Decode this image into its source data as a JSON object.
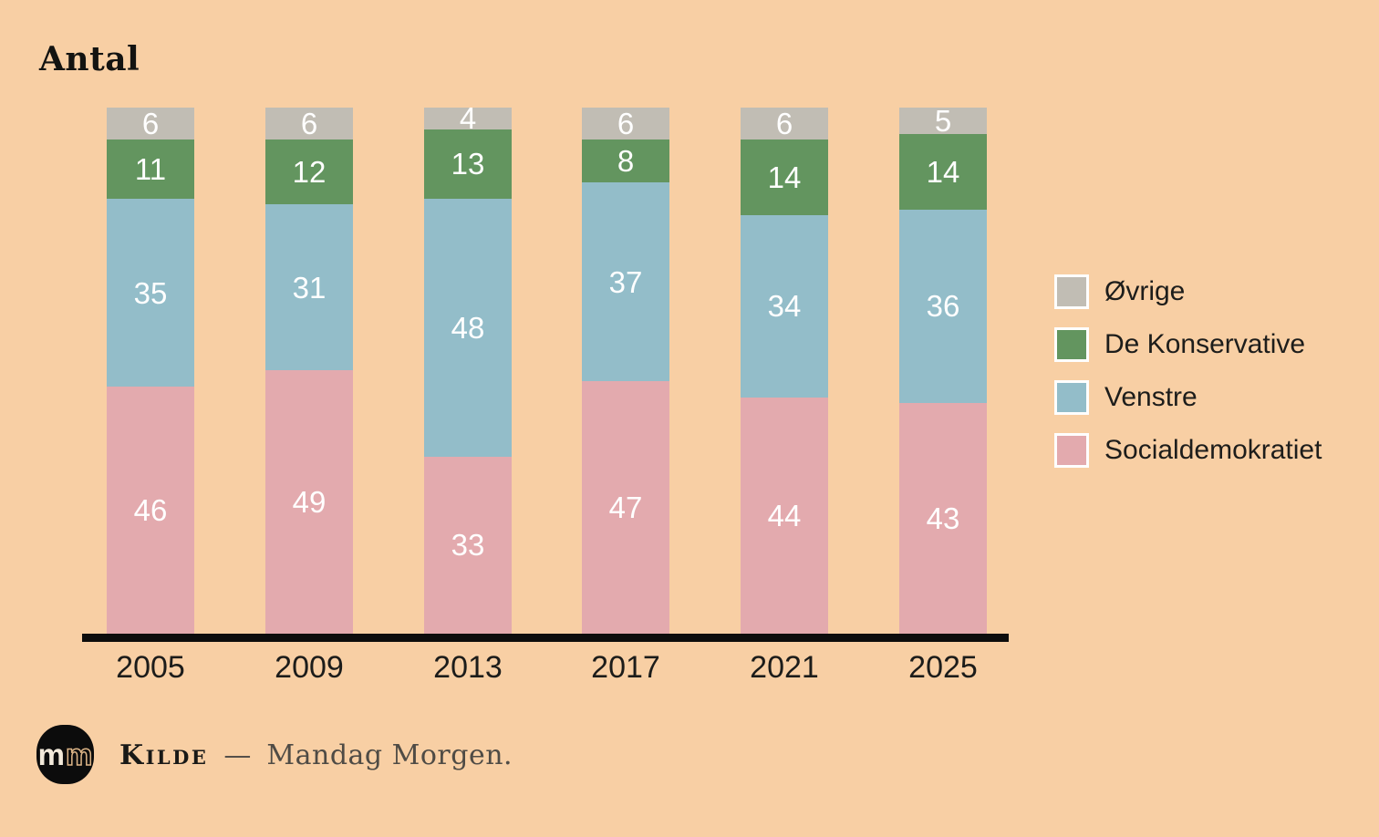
{
  "title": "Antal",
  "background_color": "#f8cfa4",
  "axis_color": "#0d0d0d",
  "chart_data": {
    "type": "bar",
    "stacked": true,
    "title": "Antal",
    "categories": [
      "2005",
      "2009",
      "2013",
      "2017",
      "2021",
      "2025"
    ],
    "series": [
      {
        "name": "Socialdemokratiet",
        "color": "#e3aaae",
        "values": [
          46,
          49,
          33,
          47,
          44,
          43
        ]
      },
      {
        "name": "Venstre",
        "color": "#93bdc9",
        "values": [
          35,
          31,
          48,
          37,
          34,
          36
        ]
      },
      {
        "name": "De Konservative",
        "color": "#63955f",
        "values": [
          11,
          12,
          13,
          8,
          14,
          14
        ]
      },
      {
        "name": "Øvrige",
        "color": "#c1bdb4",
        "values": [
          6,
          6,
          4,
          6,
          6,
          5
        ]
      }
    ],
    "stack_total": 98,
    "value_label_color": "#ffffff",
    "xlabel": "",
    "ylabel": "Antal",
    "grid": false,
    "legend_position": "right"
  },
  "legend": {
    "items": [
      {
        "label": "Øvrige",
        "color": "#c1bdb4"
      },
      {
        "label": "De Konservative",
        "color": "#63955f"
      },
      {
        "label": "Venstre",
        "color": "#93bdc9"
      },
      {
        "label": "Socialdemokratiet",
        "color": "#e3aaae"
      }
    ]
  },
  "footer": {
    "logo_text_1": "m",
    "logo_text_2": "m",
    "source_label": "Kilde",
    "source_separator": "—",
    "source_value": "Mandag Morgen."
  }
}
